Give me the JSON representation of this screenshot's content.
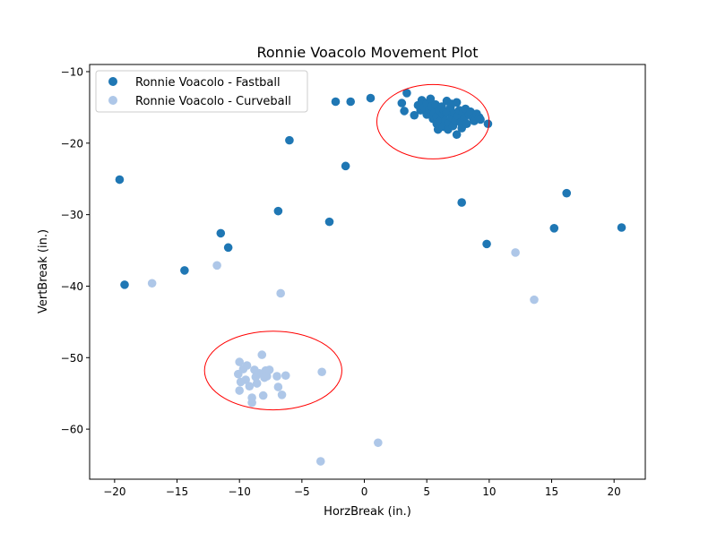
{
  "chart_data": {
    "type": "scatter",
    "title": "Ronnie Voacolo Movement Plot",
    "xlabel": "HorzBreak (in.)",
    "ylabel": "VertBreak (in.)",
    "xlim": [
      -22,
      22.5
    ],
    "ylim": [
      -67,
      -9
    ],
    "xticks": [
      -20,
      -15,
      -10,
      -5,
      0,
      5,
      10,
      15,
      20
    ],
    "yticks": [
      -10,
      -20,
      -30,
      -40,
      -50,
      -60
    ],
    "xtick_labels": [
      "−20",
      "−15",
      "−10",
      "−5",
      "0",
      "5",
      "10",
      "15",
      "20"
    ],
    "ytick_labels": [
      "−10",
      "−20",
      "−30",
      "−40",
      "−50",
      "−60"
    ],
    "grid": false,
    "legend_position": "upper-left",
    "series": [
      {
        "name": "Ronnie Voacolo - Fastball",
        "color": "#1f77b4",
        "points": [
          [
            -19.6,
            -25.1
          ],
          [
            -19.2,
            -39.8
          ],
          [
            -14.4,
            -37.8
          ],
          [
            -11.5,
            -32.6
          ],
          [
            -10.9,
            -34.6
          ],
          [
            -6.9,
            -29.5
          ],
          [
            -6.0,
            -19.6
          ],
          [
            -2.8,
            -31.0
          ],
          [
            -2.3,
            -14.2
          ],
          [
            -1.5,
            -23.2
          ],
          [
            -1.1,
            -14.2
          ],
          [
            0.5,
            -13.7
          ],
          [
            3.0,
            -14.4
          ],
          [
            3.2,
            -15.5
          ],
          [
            3.4,
            -13.0
          ],
          [
            4.0,
            -16.1
          ],
          [
            4.3,
            -14.7
          ],
          [
            4.5,
            -15.4
          ],
          [
            4.6,
            -14.0
          ],
          [
            4.8,
            -15.0
          ],
          [
            5.0,
            -16.0
          ],
          [
            5.0,
            -14.4
          ],
          [
            5.2,
            -15.3
          ],
          [
            5.3,
            -13.8
          ],
          [
            5.4,
            -14.9
          ],
          [
            5.5,
            -16.6
          ],
          [
            5.6,
            -15.8
          ],
          [
            5.7,
            -14.6
          ],
          [
            5.8,
            -17.3
          ],
          [
            5.8,
            -16.3
          ],
          [
            5.9,
            -18.1
          ],
          [
            6.0,
            -15.4
          ],
          [
            6.1,
            -16.9
          ],
          [
            6.2,
            -14.9
          ],
          [
            6.3,
            -17.7
          ],
          [
            6.3,
            -16.0
          ],
          [
            6.4,
            -15.5
          ],
          [
            6.5,
            -16.8
          ],
          [
            6.6,
            -14.1
          ],
          [
            6.6,
            -15.7
          ],
          [
            6.7,
            -18.1
          ],
          [
            6.8,
            -17.2
          ],
          [
            6.9,
            -15.0
          ],
          [
            7.0,
            -16.4
          ],
          [
            7.0,
            -14.5
          ],
          [
            7.1,
            -17.6
          ],
          [
            7.2,
            -15.8
          ],
          [
            7.3,
            -16.9
          ],
          [
            7.4,
            -14.3
          ],
          [
            7.4,
            -18.8
          ],
          [
            7.5,
            -16.2
          ],
          [
            7.6,
            -15.4
          ],
          [
            7.7,
            -17.1
          ],
          [
            7.8,
            -17.9
          ],
          [
            7.9,
            -15.7
          ],
          [
            8.0,
            -16.6
          ],
          [
            8.1,
            -15.2
          ],
          [
            8.2,
            -17.3
          ],
          [
            8.4,
            -16.0
          ],
          [
            8.5,
            -15.6
          ],
          [
            8.7,
            -16.5
          ],
          [
            8.8,
            -16.9
          ],
          [
            9.0,
            -15.9
          ],
          [
            9.2,
            -16.4
          ],
          [
            9.3,
            -16.7
          ],
          [
            9.9,
            -17.3
          ],
          [
            7.8,
            -28.3
          ],
          [
            9.8,
            -34.1
          ],
          [
            15.2,
            -31.9
          ],
          [
            16.2,
            -27.0
          ],
          [
            20.6,
            -31.8
          ]
        ]
      },
      {
        "name": "Ronnie Voacolo - Curveball",
        "color": "#aec7e8",
        "points": [
          [
            -17.0,
            -39.6
          ],
          [
            -11.8,
            -37.1
          ],
          [
            -6.7,
            -41.0
          ],
          [
            -10.0,
            -50.6
          ],
          [
            -10.1,
            -52.3
          ],
          [
            -9.9,
            -53.4
          ],
          [
            -9.7,
            -51.6
          ],
          [
            -9.4,
            -51.1
          ],
          [
            -9.5,
            -53.1
          ],
          [
            -9.2,
            -54.0
          ],
          [
            -9.0,
            -55.6
          ],
          [
            -9.0,
            -56.3
          ],
          [
            -8.8,
            -51.7
          ],
          [
            -8.7,
            -52.7
          ],
          [
            -8.6,
            -53.6
          ],
          [
            -8.4,
            -52.2
          ],
          [
            -8.2,
            -49.6
          ],
          [
            -8.1,
            -55.3
          ],
          [
            -8.0,
            -52.8
          ],
          [
            -7.9,
            -51.8
          ],
          [
            -7.8,
            -52.6
          ],
          [
            -7.6,
            -51.7
          ],
          [
            -10.0,
            -54.6
          ],
          [
            -7.0,
            -52.6
          ],
          [
            -6.9,
            -54.1
          ],
          [
            -6.6,
            -55.2
          ],
          [
            -6.3,
            -52.5
          ],
          [
            -3.4,
            -52.0
          ],
          [
            1.1,
            -61.9
          ],
          [
            -3.5,
            -64.5
          ],
          [
            12.1,
            -35.3
          ],
          [
            13.6,
            -41.9
          ]
        ]
      }
    ],
    "annotations": [
      {
        "type": "ellipse",
        "color": "#ff0000",
        "center": [
          5.5,
          -17.0
        ],
        "radii": [
          4.5,
          5.2
        ]
      },
      {
        "type": "ellipse",
        "color": "#ff0000",
        "center": [
          -7.3,
          -51.8
        ],
        "radii": [
          5.5,
          5.5
        ]
      }
    ]
  }
}
